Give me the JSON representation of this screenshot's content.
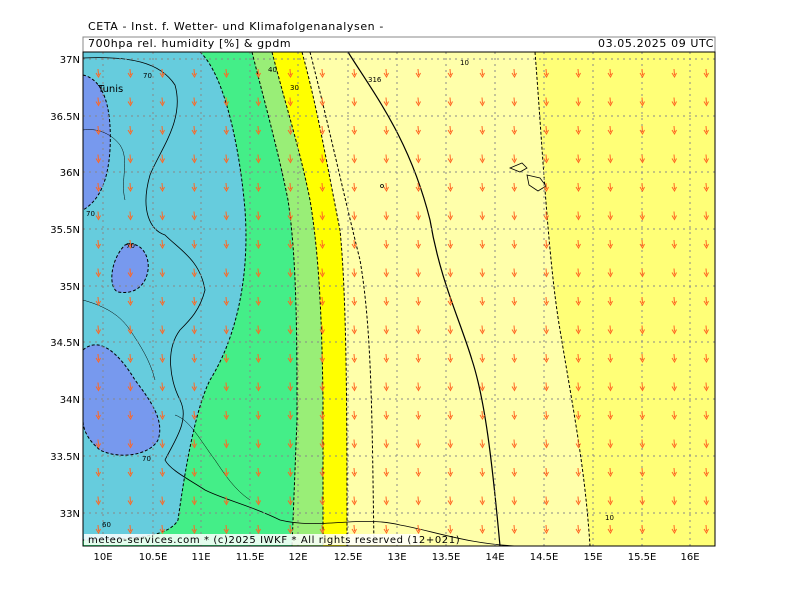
{
  "header": {
    "title": "CETA - Inst. f. Wetter- und Klimafolgenanalysen -",
    "product": "700hpa rel. humidity [%] & gpdm",
    "datetime": "03.05.2025 09 UTC"
  },
  "footer": {
    "credit": "meteo-services.com * (c)2025 IWKF * All rights reserved (12+021)"
  },
  "axes": {
    "lon_labels": [
      "10E",
      "10.5E",
      "11E",
      "11.5E",
      "12E",
      "12.5E",
      "13E",
      "13.5E",
      "14E",
      "14.5E",
      "15E",
      "15.5E",
      "16E"
    ],
    "lat_labels": [
      "37N",
      "36.5N",
      "36N",
      "35.5N",
      "35N",
      "34.5N",
      "34N",
      "33.5N",
      "33N"
    ]
  },
  "places": {
    "tunis": "Tunis"
  },
  "contour_labels": {
    "rh_70_a": "70",
    "rh_70_b": "70",
    "rh_70_c": "70",
    "rh_70_d": "70",
    "rh_60": "60",
    "rh_40": "40",
    "rh_30": "30",
    "rh_10_a": "10",
    "rh_10_b": "10",
    "gpdm_316": "316"
  },
  "colors": {
    "rh_blue": "#7799ee",
    "rh_cyan": "#66ccdd",
    "rh_green": "#44ee88",
    "rh_lightgreen": "#99ee77",
    "rh_yellow": "#ffff00",
    "rh_paleyellow": "#ffffaa",
    "rh_lightyellow": "#ffff77",
    "wind_arrow": "#ff6622",
    "grid": "#888888"
  }
}
